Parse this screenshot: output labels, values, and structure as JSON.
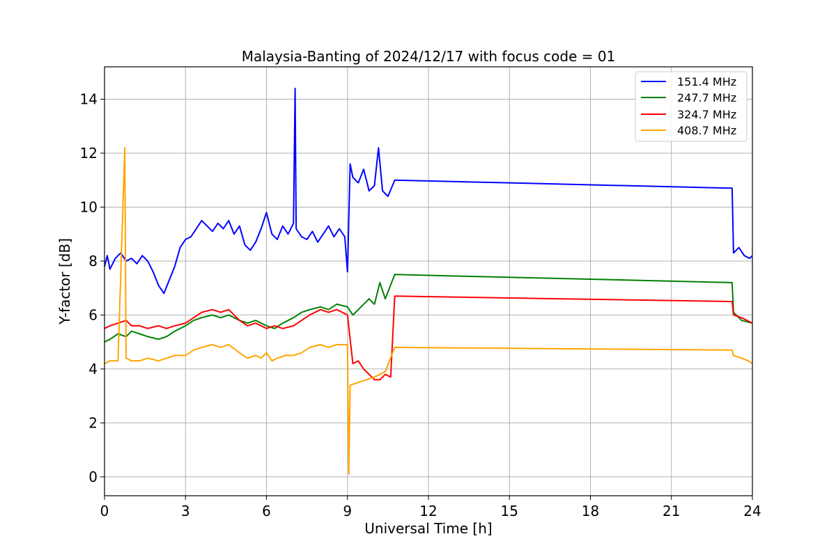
{
  "chart_data": {
    "type": "line",
    "title": "Malaysia-Banting of 2024/12/17 with focus code = 01",
    "xlabel": "Universal Time [h]",
    "ylabel": "Y-factor [dB]",
    "xlim": [
      0,
      24
    ],
    "ylim": [
      -0.7,
      15.2
    ],
    "xticks": [
      0,
      3,
      6,
      9,
      12,
      15,
      18,
      21,
      24
    ],
    "xtick_labels": [
      "0",
      "3",
      "6",
      "9",
      "12",
      "15",
      "18",
      "21",
      "24"
    ],
    "yticks": [
      0,
      2,
      4,
      6,
      8,
      10,
      12,
      14
    ],
    "ytick_labels": [
      "0",
      "2",
      "4",
      "6",
      "8",
      "10",
      "12",
      "14"
    ],
    "grid": true,
    "legend_position": "top-right",
    "series": [
      {
        "name": "151.4 MHz",
        "color": "#0000ff",
        "x": [
          0,
          0.1,
          0.2,
          0.4,
          0.6,
          0.8,
          1.0,
          1.2,
          1.4,
          1.6,
          1.8,
          2.0,
          2.2,
          2.4,
          2.6,
          2.8,
          3.0,
          3.2,
          3.4,
          3.6,
          3.8,
          4.0,
          4.2,
          4.4,
          4.6,
          4.8,
          5.0,
          5.2,
          5.4,
          5.6,
          5.8,
          6.0,
          6.2,
          6.4,
          6.6,
          6.8,
          7.0,
          7.06,
          7.1,
          7.3,
          7.5,
          7.7,
          7.9,
          8.1,
          8.3,
          8.5,
          8.7,
          8.9,
          9.0,
          9.1,
          9.2,
          9.4,
          9.6,
          9.8,
          10.0,
          10.15,
          10.3,
          10.5,
          10.75,
          23.25,
          23.3,
          23.5,
          23.7,
          23.9,
          24.0
        ],
        "y": [
          7.8,
          8.2,
          7.7,
          8.1,
          8.3,
          8.0,
          8.1,
          7.9,
          8.2,
          8.0,
          7.6,
          7.1,
          6.8,
          7.3,
          7.8,
          8.5,
          8.8,
          8.9,
          9.2,
          9.5,
          9.3,
          9.1,
          9.4,
          9.2,
          9.5,
          9.0,
          9.3,
          8.6,
          8.4,
          8.7,
          9.2,
          9.8,
          9.0,
          8.8,
          9.3,
          9.0,
          9.4,
          14.4,
          9.2,
          8.9,
          8.8,
          9.1,
          8.7,
          9.0,
          9.3,
          8.9,
          9.2,
          8.9,
          7.6,
          11.6,
          11.1,
          10.9,
          11.4,
          10.6,
          10.8,
          12.2,
          10.6,
          10.4,
          11.0,
          10.7,
          8.3,
          8.5,
          8.2,
          8.1,
          8.2
        ]
      },
      {
        "name": "247.7 MHz",
        "color": "#008000",
        "x": [
          0,
          0.2,
          0.5,
          0.8,
          1.0,
          1.3,
          1.6,
          2.0,
          2.3,
          2.6,
          3.0,
          3.3,
          3.6,
          4.0,
          4.3,
          4.6,
          5.0,
          5.3,
          5.6,
          6.0,
          6.3,
          6.6,
          7.0,
          7.3,
          7.6,
          8.0,
          8.3,
          8.6,
          9.0,
          9.2,
          9.5,
          9.8,
          10.0,
          10.2,
          10.4,
          10.75,
          23.25,
          23.3,
          23.6,
          24.0
        ],
        "y": [
          5.0,
          5.1,
          5.3,
          5.2,
          5.4,
          5.3,
          5.2,
          5.1,
          5.2,
          5.4,
          5.6,
          5.8,
          5.9,
          6.0,
          5.9,
          6.0,
          5.8,
          5.7,
          5.8,
          5.6,
          5.5,
          5.7,
          5.9,
          6.1,
          6.2,
          6.3,
          6.2,
          6.4,
          6.3,
          6.0,
          6.3,
          6.6,
          6.4,
          7.2,
          6.6,
          7.5,
          7.2,
          6.1,
          5.8,
          5.7
        ]
      },
      {
        "name": "324.7 MHz",
        "color": "#ff0000",
        "x": [
          0,
          0.2,
          0.5,
          0.8,
          1.0,
          1.3,
          1.6,
          2.0,
          2.3,
          2.6,
          3.0,
          3.3,
          3.6,
          4.0,
          4.3,
          4.6,
          5.0,
          5.3,
          5.6,
          6.0,
          6.3,
          6.6,
          7.0,
          7.3,
          7.6,
          8.0,
          8.3,
          8.6,
          9.0,
          9.2,
          9.4,
          9.6,
          9.8,
          10.0,
          10.2,
          10.4,
          10.6,
          10.75,
          23.25,
          23.3,
          23.6,
          24.0
        ],
        "y": [
          5.5,
          5.6,
          5.7,
          5.8,
          5.6,
          5.6,
          5.5,
          5.6,
          5.5,
          5.6,
          5.7,
          5.9,
          6.1,
          6.2,
          6.1,
          6.2,
          5.8,
          5.6,
          5.7,
          5.5,
          5.6,
          5.5,
          5.6,
          5.8,
          6.0,
          6.2,
          6.1,
          6.2,
          6.0,
          4.2,
          4.3,
          4.0,
          3.8,
          3.6,
          3.6,
          3.8,
          3.7,
          6.7,
          6.5,
          6.0,
          5.9,
          5.7
        ]
      },
      {
        "name": "408.7 MHz",
        "color": "#ffa500",
        "x": [
          0,
          0.2,
          0.5,
          0.75,
          0.8,
          1.0,
          1.3,
          1.6,
          2.0,
          2.3,
          2.6,
          3.0,
          3.3,
          3.6,
          4.0,
          4.3,
          4.6,
          5.0,
          5.3,
          5.6,
          5.8,
          6.0,
          6.2,
          6.4,
          6.7,
          7.0,
          7.3,
          7.6,
          8.0,
          8.3,
          8.6,
          9.0,
          9.05,
          9.1,
          9.4,
          9.7,
          10.0,
          10.2,
          10.4,
          10.75,
          23.25,
          23.3,
          23.6,
          23.85,
          24.0
        ],
        "y": [
          4.2,
          4.3,
          4.3,
          12.2,
          4.4,
          4.3,
          4.3,
          4.4,
          4.3,
          4.4,
          4.5,
          4.5,
          4.7,
          4.8,
          4.9,
          4.8,
          4.9,
          4.6,
          4.4,
          4.5,
          4.4,
          4.6,
          4.3,
          4.4,
          4.5,
          4.5,
          4.6,
          4.8,
          4.9,
          4.8,
          4.9,
          4.9,
          0.1,
          3.4,
          3.5,
          3.6,
          3.7,
          3.8,
          3.9,
          4.8,
          4.7,
          4.5,
          4.4,
          4.3,
          4.2
        ]
      }
    ]
  }
}
